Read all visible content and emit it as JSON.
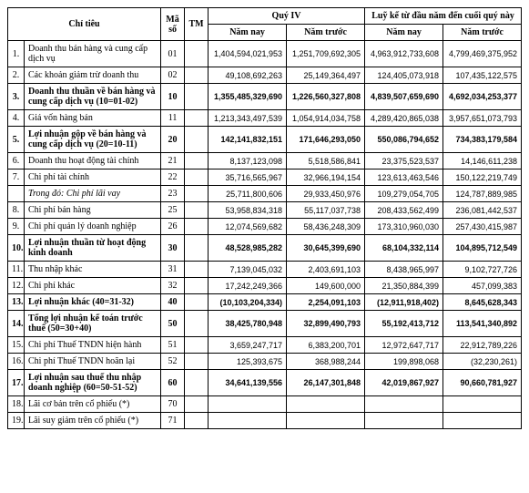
{
  "headers": {
    "chi_tieu": "Chỉ tiêu",
    "ma_so": "Mã số",
    "tm": "TM",
    "quy4": "Quý IV",
    "luyke": "Luỹ kế từ đầu năm đến cuối quý này",
    "nam_nay": "Năm nay",
    "nam_truoc": "Năm trước"
  },
  "rows": [
    {
      "idx": "1.",
      "name": "Doanh thu bán hàng và cung cấp dịch vụ",
      "ms": "01",
      "tm": "",
      "q_now": "1,404,594,021,953",
      "q_prev": "1,251,709,692,305",
      "l_now": "4,963,912,733,608",
      "l_prev": "4,799,469,375,952",
      "bold": false
    },
    {
      "idx": "2.",
      "name": "Các khoản giảm trừ doanh thu",
      "ms": "02",
      "tm": "",
      "q_now": "49,108,692,263",
      "q_prev": "25,149,364,497",
      "l_now": "124,405,073,918",
      "l_prev": "107,435,122,575",
      "bold": false
    },
    {
      "idx": "3.",
      "name": "Doanh thu thuần về bán hàng và cung cấp dịch vụ (10=01-02)",
      "ms": "10",
      "tm": "",
      "q_now": "1,355,485,329,690",
      "q_prev": "1,226,560,327,808",
      "l_now": "4,839,507,659,690",
      "l_prev": "4,692,034,253,377",
      "bold": true
    },
    {
      "idx": "4.",
      "name": "Giá vốn hàng bán",
      "ms": "11",
      "tm": "",
      "q_now": "1,213,343,497,539",
      "q_prev": "1,054,914,034,758",
      "l_now": "4,289,420,865,038",
      "l_prev": "3,957,651,073,793",
      "bold": false
    },
    {
      "idx": "5.",
      "name": "Lợi nhuận gộp về bán hàng và cung cấp dịch vụ (20=10-11)",
      "ms": "20",
      "tm": "",
      "q_now": "142,141,832,151",
      "q_prev": "171,646,293,050",
      "l_now": "550,086,794,652",
      "l_prev": "734,383,179,584",
      "bold": true
    },
    {
      "idx": "6.",
      "name": "Doanh thu hoạt động tài chính",
      "ms": "21",
      "tm": "",
      "q_now": "8,137,123,098",
      "q_prev": "5,518,586,841",
      "l_now": "23,375,523,537",
      "l_prev": "14,146,611,238",
      "bold": false
    },
    {
      "idx": "7.",
      "name": "Chi phí tài chính",
      "ms": "22",
      "tm": "",
      "q_now": "35,716,565,967",
      "q_prev": "32,966,194,154",
      "l_now": "123,613,463,546",
      "l_prev": "150,122,219,749",
      "bold": false
    },
    {
      "idx": "",
      "name": "Trong đó: Chi phí lãi vay",
      "ms": "23",
      "tm": "",
      "q_now": "25,711,800,606",
      "q_prev": "29,933,450,976",
      "l_now": "109,279,054,705",
      "l_prev": "124,787,889,985",
      "bold": false,
      "italic": true
    },
    {
      "idx": "8.",
      "name": "Chi phí bán hàng",
      "ms": "25",
      "tm": "",
      "q_now": "53,958,834,318",
      "q_prev": "55,117,037,738",
      "l_now": "208,433,562,499",
      "l_prev": "236,081,442,537",
      "bold": false
    },
    {
      "idx": "9.",
      "name": "Chi phí quản lý doanh nghiệp",
      "ms": "26",
      "tm": "",
      "q_now": "12,074,569,682",
      "q_prev": "58,436,248,309",
      "l_now": "173,310,960,030",
      "l_prev": "257,430,415,987",
      "bold": false
    },
    {
      "idx": "10.",
      "name": "Lợi nhuận thuần từ hoạt động kinh doanh",
      "ms": "30",
      "tm": "",
      "q_now": "48,528,985,282",
      "q_prev": "30,645,399,690",
      "l_now": "68,104,332,114",
      "l_prev": "104,895,712,549",
      "bold": true
    },
    {
      "idx": "11.",
      "name": "Thu nhập khác",
      "ms": "31",
      "tm": "",
      "q_now": "7,139,045,032",
      "q_prev": "2,403,691,103",
      "l_now": "8,438,965,997",
      "l_prev": "9,102,727,726",
      "bold": false
    },
    {
      "idx": "12.",
      "name": "Chi phí khác",
      "ms": "32",
      "tm": "",
      "q_now": "17,242,249,366",
      "q_prev": "149,600,000",
      "l_now": "21,350,884,399",
      "l_prev": "457,099,383",
      "bold": false
    },
    {
      "idx": "13.",
      "name": "Lợi nhuận khác (40=31-32)",
      "ms": "40",
      "tm": "",
      "q_now": "(10,103,204,334)",
      "q_prev": "2,254,091,103",
      "l_now": "(12,911,918,402)",
      "l_prev": "8,645,628,343",
      "bold": true
    },
    {
      "idx": "14.",
      "name": "Tổng lợi nhuận kế toán trước thuế (50=30+40)",
      "ms": "50",
      "tm": "",
      "q_now": "38,425,780,948",
      "q_prev": "32,899,490,793",
      "l_now": "55,192,413,712",
      "l_prev": "113,541,340,892",
      "bold": true
    },
    {
      "idx": "15.",
      "name": "Chi phí Thuế TNDN hiện hành",
      "ms": "51",
      "tm": "",
      "q_now": "3,659,247,717",
      "q_prev": "6,383,200,701",
      "l_now": "12,972,647,717",
      "l_prev": "22,912,789,226",
      "bold": false
    },
    {
      "idx": "16.",
      "name": "Chi phí Thuế TNDN hoãn lại",
      "ms": "52",
      "tm": "",
      "q_now": "125,393,675",
      "q_prev": "368,988,244",
      "l_now": "199,898,068",
      "l_prev": "(32,230,261)",
      "bold": false
    },
    {
      "idx": "17.",
      "name": "Lợi nhuận sau thuế thu nhập doanh nghiệp (60=50-51-52)",
      "ms": "60",
      "tm": "",
      "q_now": "34,641,139,556",
      "q_prev": "26,147,301,848",
      "l_now": "42,019,867,927",
      "l_prev": "90,660,781,927",
      "bold": true
    },
    {
      "idx": "18.",
      "name": "Lãi cơ bản trên cổ phiếu (*)",
      "ms": "70",
      "tm": "",
      "q_now": "",
      "q_prev": "",
      "l_now": "",
      "l_prev": "",
      "bold": false
    },
    {
      "idx": "19.",
      "name": "Lãi suy giảm trên cổ phiếu (*)",
      "ms": "71",
      "tm": "",
      "q_now": "",
      "q_prev": "",
      "l_now": "",
      "l_prev": "",
      "bold": false
    }
  ]
}
